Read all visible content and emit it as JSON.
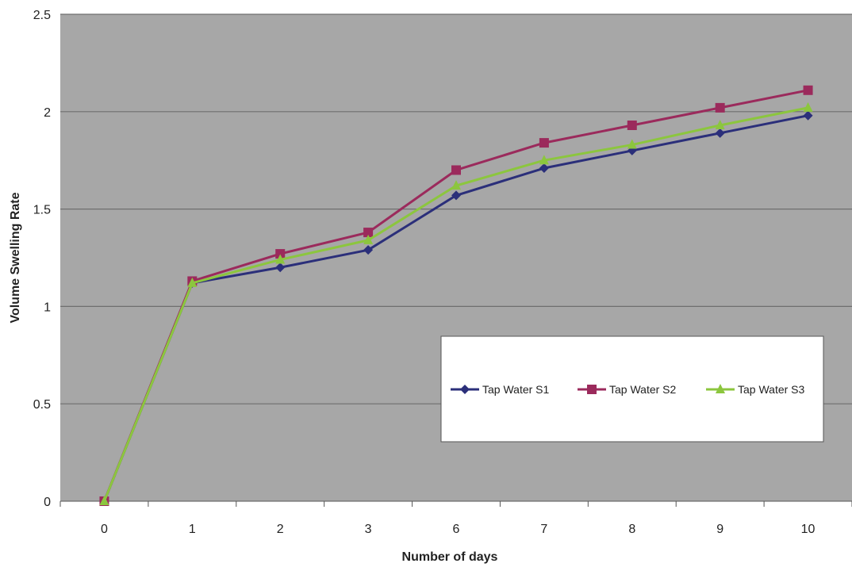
{
  "chart_data": {
    "type": "line",
    "title": "",
    "xlabel": "Number of days",
    "ylabel": "Volume Swelling Rate",
    "categories": [
      "0",
      "1",
      "2",
      "3",
      "6",
      "7",
      "8",
      "9",
      "10"
    ],
    "ylim": [
      0,
      2.5
    ],
    "yticks": [
      "0",
      "0.5",
      "1",
      "1.5",
      "2",
      "2.5"
    ],
    "grid": true,
    "legend_position": "lower-right",
    "plot_background": "#a7a7a7",
    "series": [
      {
        "name": "Tap Water S1",
        "color": "#2b2f7a",
        "marker": "diamond",
        "values": [
          0,
          1.12,
          1.2,
          1.29,
          1.57,
          1.71,
          1.8,
          1.89,
          1.98
        ]
      },
      {
        "name": "Tap Water S2",
        "color": "#9b2a5c",
        "marker": "square",
        "values": [
          0,
          1.13,
          1.27,
          1.38,
          1.7,
          1.84,
          1.93,
          2.02,
          2.11
        ]
      },
      {
        "name": "Tap Water S3",
        "color": "#8cc63e",
        "marker": "triangle",
        "values": [
          0,
          1.12,
          1.24,
          1.34,
          1.62,
          1.75,
          1.83,
          1.93,
          2.02
        ]
      }
    ]
  }
}
